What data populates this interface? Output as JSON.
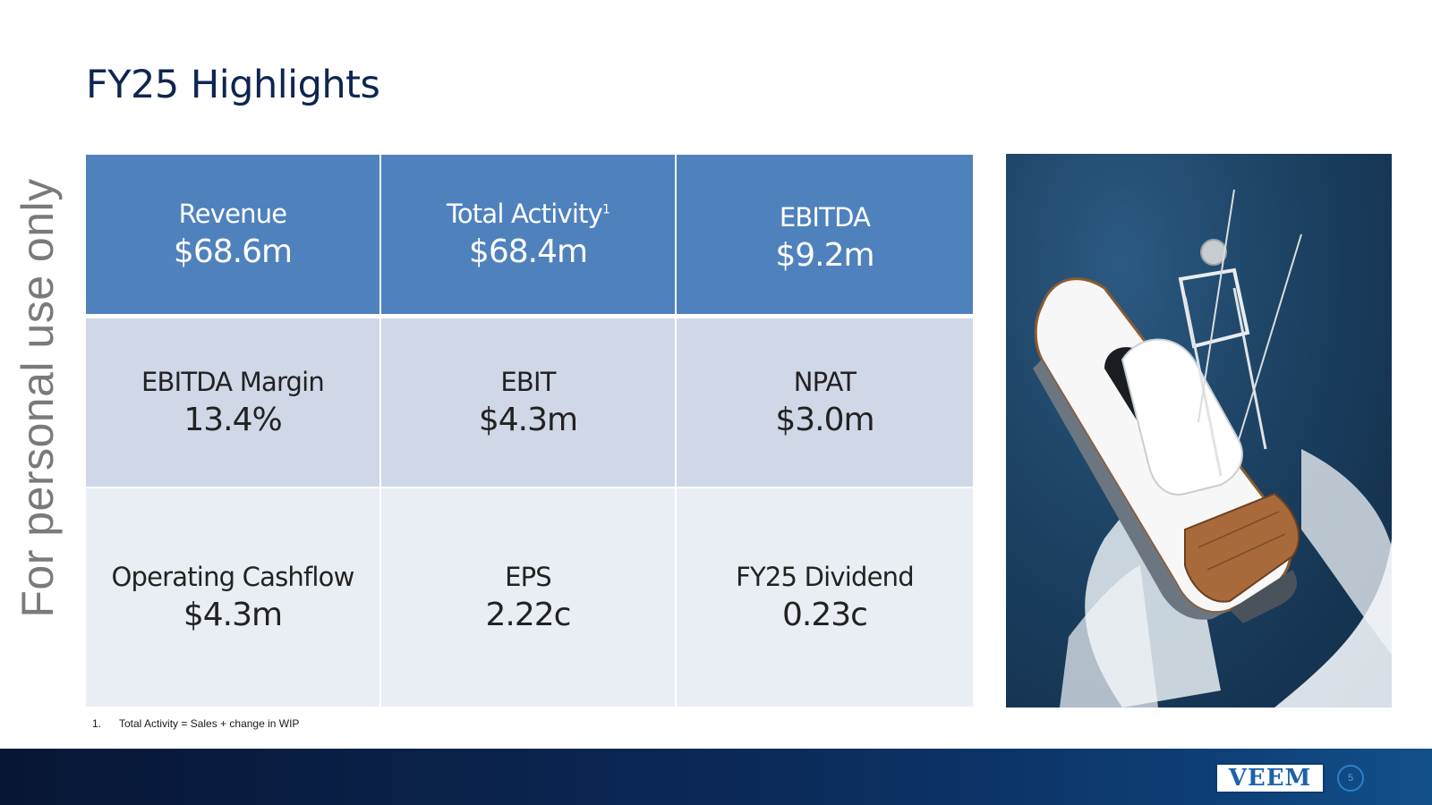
{
  "watermark": "For personal use only",
  "title": "FY25 Highlights",
  "metrics": [
    {
      "label": "Revenue",
      "value": "$68.6m"
    },
    {
      "label": "Total Activity",
      "sup": "1",
      "value": "$68.4m"
    },
    {
      "label": "EBITDA",
      "value": "$9.2m"
    },
    {
      "label": "EBITDA Margin",
      "value": "13.4%"
    },
    {
      "label": "EBIT",
      "value": "$4.3m"
    },
    {
      "label": "NPAT",
      "value": "$3.0m"
    },
    {
      "label": "Operating Cashflow",
      "value": "$4.3m"
    },
    {
      "label": "EPS",
      "value": "2.22c"
    },
    {
      "label": "FY25 Dividend",
      "value": "0.23c"
    }
  ],
  "footnote": {
    "number": "1.",
    "text": "Total Activity = Sales + change in WIP"
  },
  "logo": "VEEM",
  "page_number": "5",
  "colors": {
    "title": "#0f2550",
    "header_row": "#4f81bd",
    "row2": "#d0d8e8",
    "row3": "#e9edf4",
    "footer": "#0b2a5a"
  }
}
